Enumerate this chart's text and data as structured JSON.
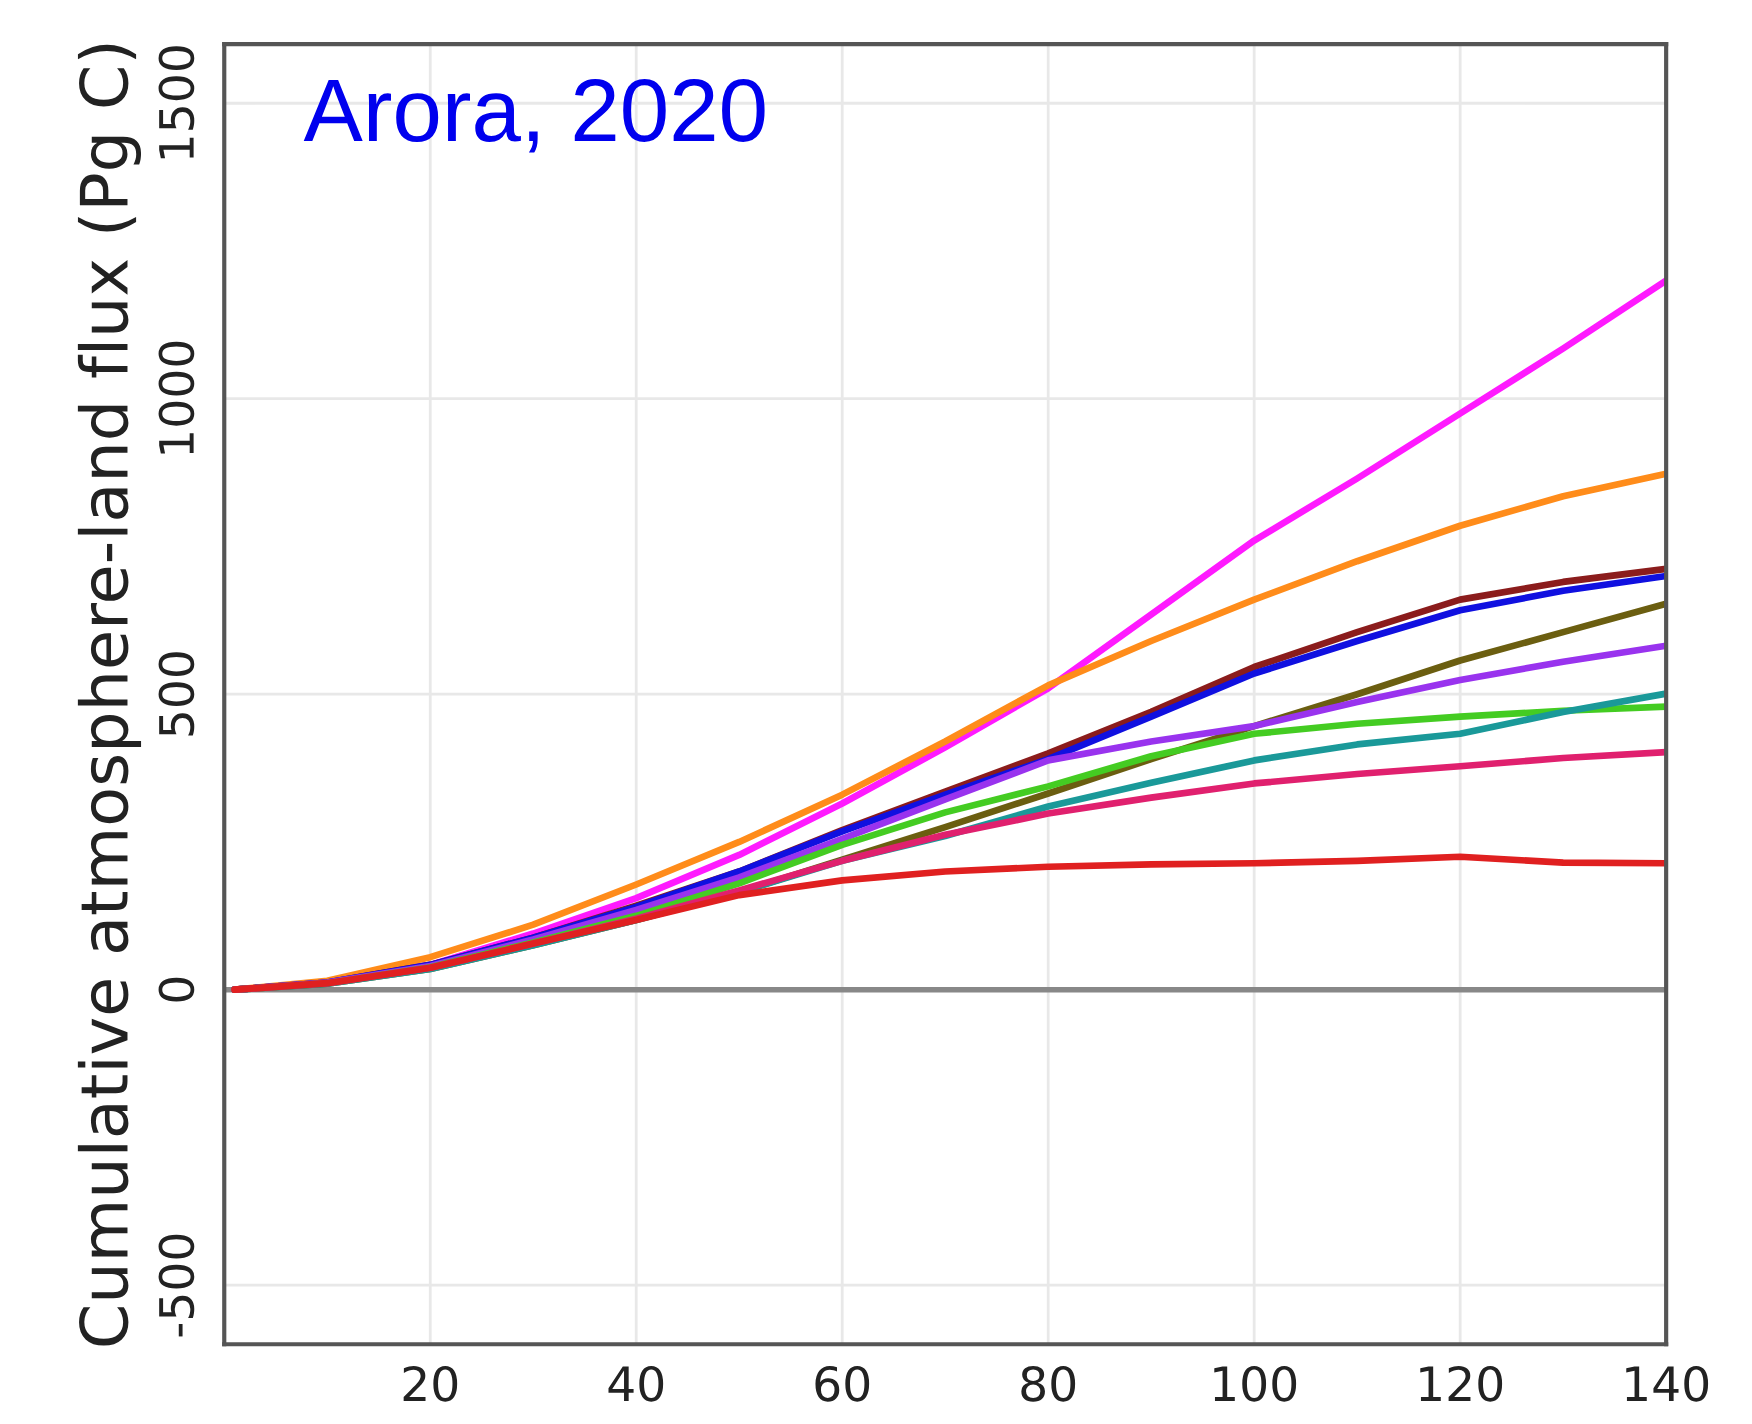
{
  "chart_data": {
    "type": "line",
    "title": "Arora, 2020",
    "ylabel": "Cumulative atmosphere-land flux (Pg C)",
    "x": [
      1,
      10,
      20,
      30,
      40,
      50,
      60,
      70,
      80,
      90,
      100,
      110,
      120,
      130,
      140
    ],
    "series": [
      {
        "color": "#ff1aff",
        "values": [
          0,
          12,
          42,
          95,
          155,
          228,
          315,
          410,
          510,
          635,
          760,
          865,
          975,
          1085,
          1200
        ]
      },
      {
        "color": "#ff8c1a",
        "values": [
          0,
          15,
          55,
          110,
          178,
          250,
          330,
          420,
          515,
          590,
          660,
          725,
          785,
          835,
          873
        ]
      },
      {
        "color": "#8b1c1c",
        "values": [
          0,
          12,
          42,
          88,
          142,
          200,
          270,
          335,
          400,
          470,
          546,
          605,
          660,
          690,
          712
        ]
      },
      {
        "color": "#1010e0",
        "values": [
          0,
          12,
          42,
          88,
          140,
          200,
          268,
          330,
          390,
          462,
          535,
          590,
          642,
          675,
          700
        ]
      },
      {
        "color": "#6b5e10",
        "values": [
          0,
          10,
          35,
          75,
          118,
          165,
          220,
          275,
          332,
          390,
          446,
          500,
          557,
          605,
          653
        ]
      },
      {
        "color": "#9933ee",
        "values": [
          0,
          12,
          40,
          85,
          135,
          190,
          255,
          322,
          388,
          420,
          446,
          487,
          524,
          555,
          582
        ]
      },
      {
        "color": "#44cc22",
        "values": [
          0,
          11,
          38,
          80,
          125,
          180,
          245,
          300,
          344,
          395,
          433,
          450,
          462,
          472,
          479
        ]
      },
      {
        "color": "#1a9999",
        "values": [
          0,
          10,
          35,
          75,
          118,
          165,
          218,
          260,
          310,
          350,
          388,
          415,
          433,
          470,
          501
        ]
      },
      {
        "color": "#e0206e",
        "values": [
          0,
          11,
          37,
          78,
          120,
          168,
          218,
          262,
          298,
          325,
          349,
          365,
          378,
          392,
          402
        ]
      },
      {
        "color": "#e02020",
        "values": [
          0,
          11,
          37,
          78,
          118,
          160,
          185,
          200,
          208,
          212,
          214,
          218,
          225,
          215,
          214
        ]
      }
    ],
    "xlim": [
      0,
      140
    ],
    "ylim": [
      -600,
      1600
    ],
    "xticks": [
      20,
      40,
      60,
      80,
      100,
      120,
      140
    ],
    "yticks": [
      -500,
      0,
      500,
      1000,
      1500
    ],
    "grid": true,
    "line_style": "solid",
    "ref_lines": [
      {
        "axis": "y",
        "value": 0,
        "color": "#888888"
      }
    ]
  }
}
